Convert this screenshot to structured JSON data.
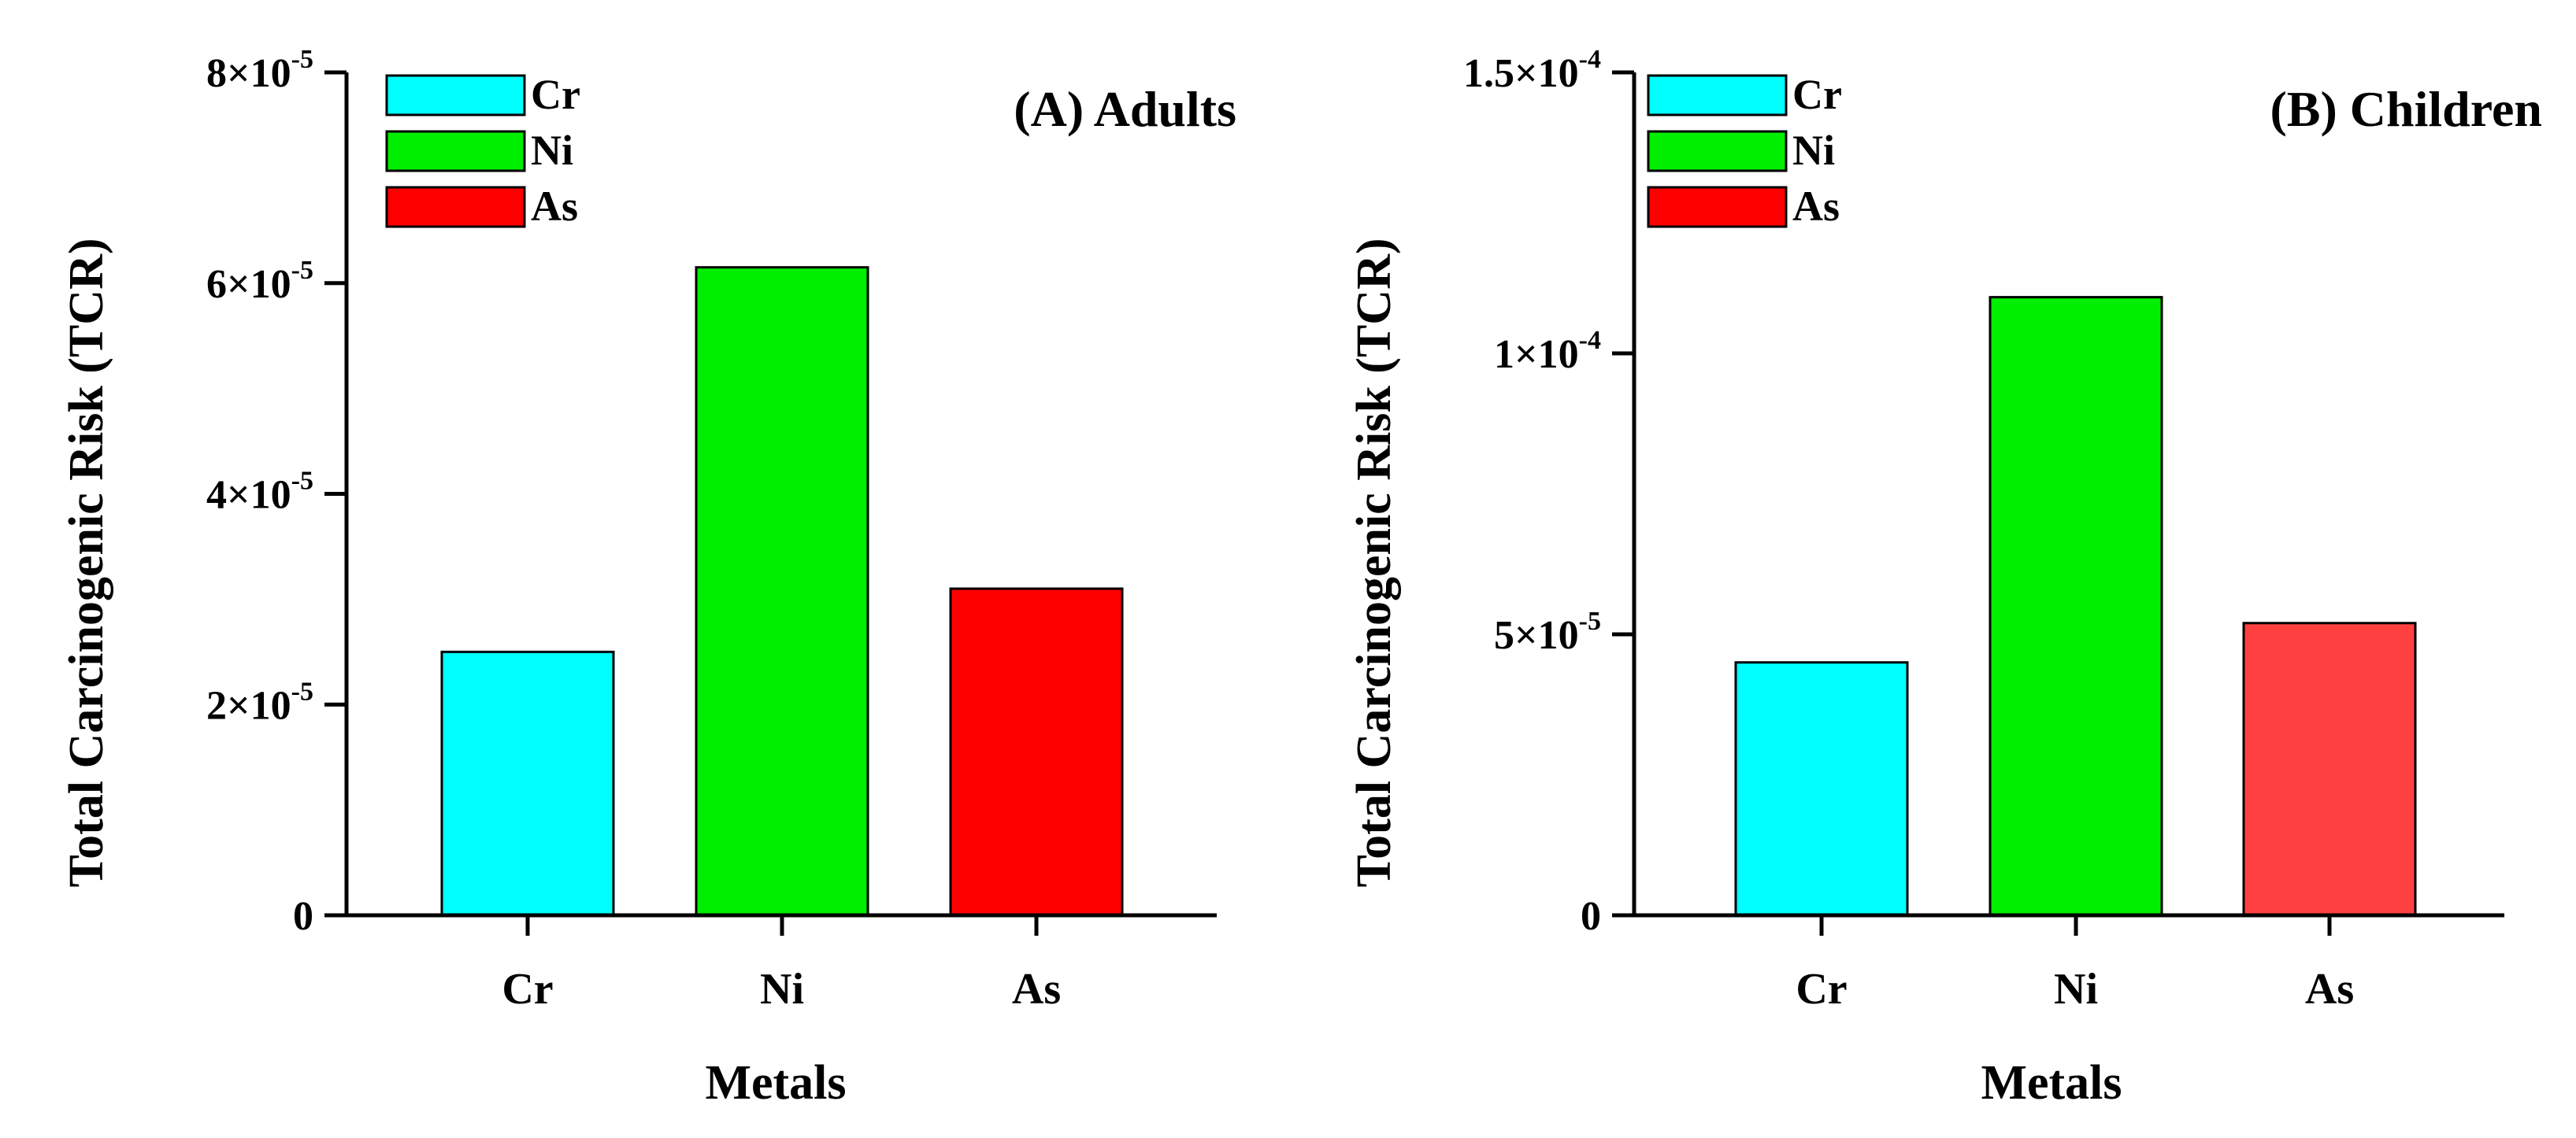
{
  "chart_data": [
    {
      "type": "bar",
      "title": "(A) Adults",
      "xlabel": "Metals",
      "ylabel": "Total Carcinogenic Risk (TCR)",
      "categories": [
        "Cr",
        "Ni",
        "As"
      ],
      "values": [
        2.5e-05,
        6.15e-05,
        3.1e-05
      ],
      "colors": [
        "#00ffff",
        "#00ee00",
        "#ff0000"
      ],
      "ylim": [
        0,
        8e-05
      ],
      "yticks": [
        {
          "value": 0,
          "label": "0",
          "exp": ""
        },
        {
          "value": 2e-05,
          "label": "2×10",
          "exp": "-5"
        },
        {
          "value": 4e-05,
          "label": "4×10",
          "exp": "-5"
        },
        {
          "value": 6e-05,
          "label": "6×10",
          "exp": "-5"
        },
        {
          "value": 8e-05,
          "label": "8×10",
          "exp": "-5"
        }
      ],
      "legend": [
        {
          "label": "Cr",
          "color": "#00ffff"
        },
        {
          "label": "Ni",
          "color": "#00ee00"
        },
        {
          "label": "As",
          "color": "#ff0000"
        }
      ],
      "legend_position": "top-left"
    },
    {
      "type": "bar",
      "title": "(B) Children",
      "xlabel": "Metals",
      "ylabel": "Total Carcinogenic Risk (TCR)",
      "categories": [
        "Cr",
        "Ni",
        "As"
      ],
      "values": [
        4.5e-05,
        0.00011,
        5.2e-05
      ],
      "colors": [
        "#00ffff",
        "#00ee00",
        "#ff4040"
      ],
      "ylim": [
        0,
        0.00015
      ],
      "yticks": [
        {
          "value": 0,
          "label": "0",
          "exp": ""
        },
        {
          "value": 5e-05,
          "label": "5×10",
          "exp": "-5"
        },
        {
          "value": 0.0001,
          "label": "1×10",
          "exp": "-4"
        },
        {
          "value": 0.00015,
          "label": "1.5×10",
          "exp": "-4"
        }
      ],
      "legend": [
        {
          "label": "Cr",
          "color": "#00ffff"
        },
        {
          "label": "Ni",
          "color": "#00ee00"
        },
        {
          "label": "As",
          "color": "#ff0000"
        }
      ],
      "legend_position": "top-left"
    }
  ]
}
